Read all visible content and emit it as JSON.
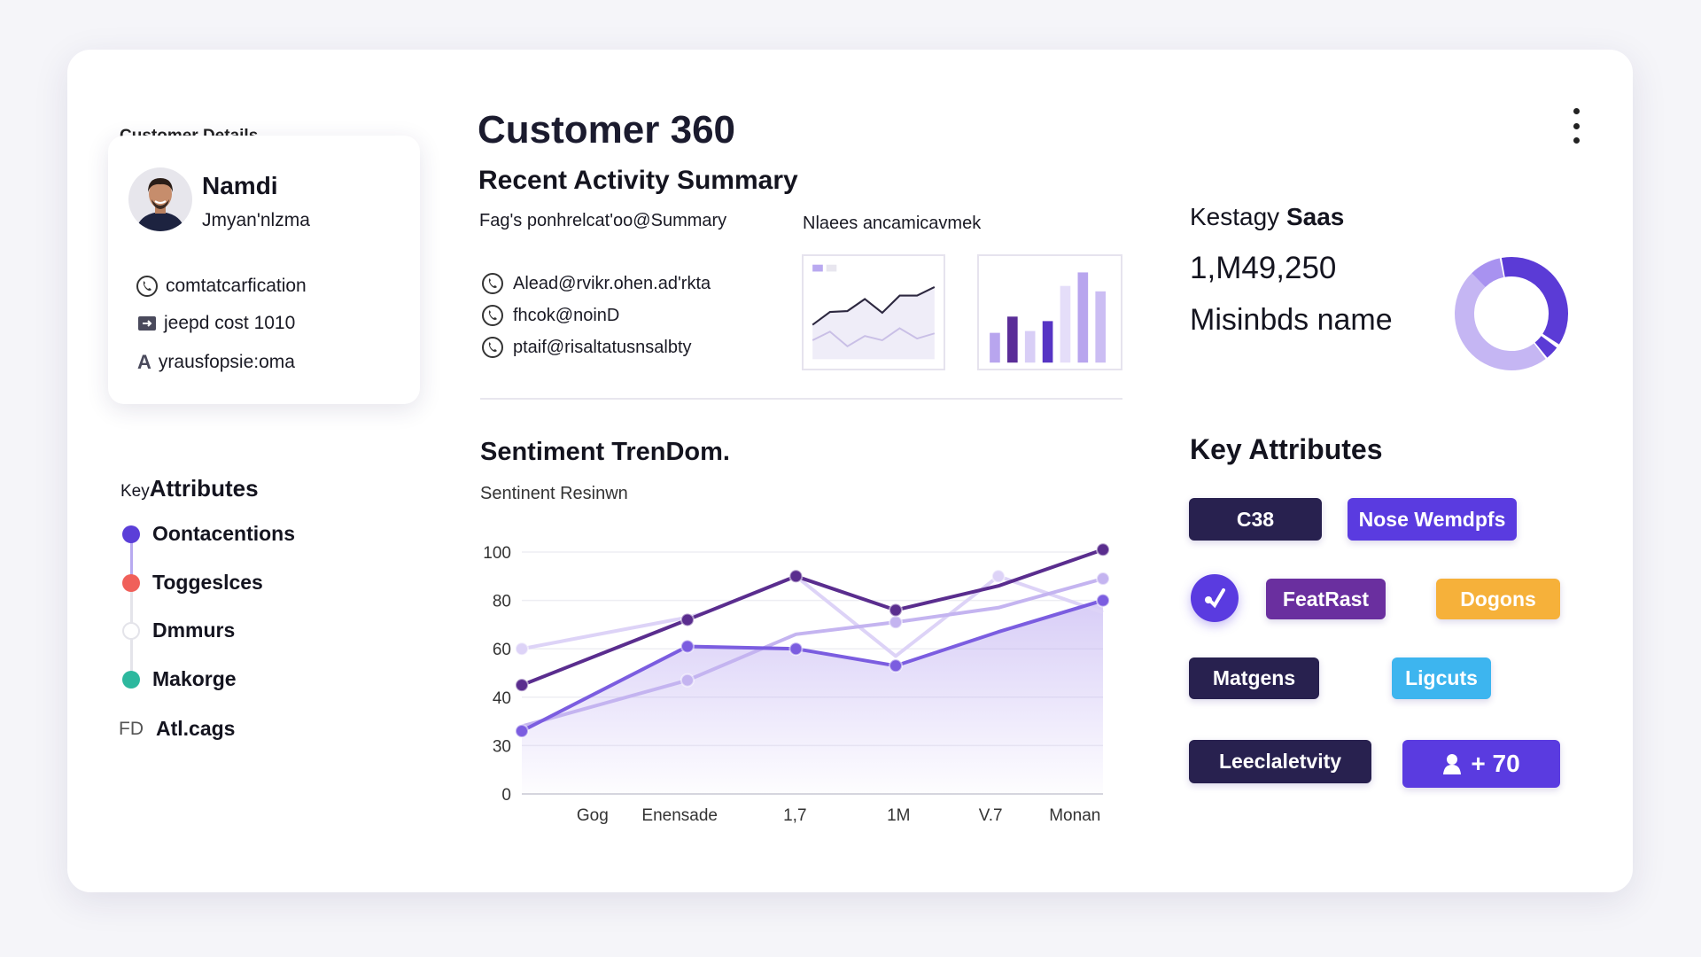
{
  "app": {
    "title": "Customer 360",
    "menu_icon": "kebab-menu-icon"
  },
  "customer": {
    "section_label": "Customer Details",
    "name": "Namdi",
    "subtitle": "Jmyan'nlzma",
    "details": [
      {
        "icon": "phone-icon",
        "text": "comtatcarfication"
      },
      {
        "icon": "id-card-icon",
        "text": "jeepd cost 1010"
      },
      {
        "icon": "letter-a-icon",
        "text": "yrausfopsie:oma"
      }
    ]
  },
  "key_attributes_left": {
    "title_prefix": "Key",
    "title": "Attributes",
    "items": [
      {
        "label": "Oontacentions",
        "color": "#5b3fd8"
      },
      {
        "label": "Toggeslces",
        "color": "#f0605a"
      },
      {
        "label": "Dmmurs",
        "color": "#ffffff"
      },
      {
        "label": "Makorge",
        "color": "#2db89e"
      }
    ],
    "footer_prefix": "FD",
    "footer_label": "Atl.cags"
  },
  "activity": {
    "title": "Recent Activity Summary",
    "subtitle": "Fag's ponhrelcat'oo@Summary",
    "right_subtitle": "Nlaees ancamicavmek",
    "items": [
      {
        "icon": "phone-icon",
        "text": "Alead@rvikr.ohen.ad'rkta"
      },
      {
        "icon": "phone-icon",
        "text": "fhcok@noinD"
      },
      {
        "icon": "phone-icon",
        "text": "ptaif@risaltatusnsalbty"
      }
    ],
    "sparkline": {
      "dark": [
        40,
        55,
        56,
        70,
        54,
        74,
        74,
        84
      ],
      "light": [
        22,
        32,
        15,
        27,
        22,
        36,
        24,
        30
      ]
    },
    "mini_bars": [
      {
        "value": 33,
        "color": "#b8a5ee"
      },
      {
        "value": 51,
        "color": "#5a2d98"
      },
      {
        "value": 35,
        "color": "#d8cef6"
      },
      {
        "value": 46,
        "color": "#5634c4"
      },
      {
        "value": 85,
        "color": "#e5def9"
      },
      {
        "value": 100,
        "color": "#b8a5ee"
      },
      {
        "value": 79,
        "color": "#cbbdf3"
      }
    ]
  },
  "sentiment": {
    "title": "Sentiment TrenDom.",
    "subtitle": "Sentinent Resinwn"
  },
  "chart_data": {
    "type": "line",
    "title": "",
    "y_ticks": [
      100,
      80,
      60,
      40,
      30,
      0
    ],
    "x_ticks": [
      {
        "label": "Gog",
        "x": 0.73
      },
      {
        "label": "Enensade",
        "x": 1.63
      },
      {
        "label": "1,7",
        "x": 2.82
      },
      {
        "label": "1M",
        "x": 3.89
      },
      {
        "label": "V.7",
        "x": 4.84
      },
      {
        "label": "Monan",
        "x": 5.71
      }
    ],
    "xlim": [
      0,
      6
    ],
    "grid": true,
    "series": [
      {
        "color": "#ddd3f7",
        "markers": [
          0,
          5
        ],
        "points": [
          [
            0,
            60
          ],
          [
            1.71,
            73
          ],
          [
            1.9,
            75
          ],
          [
            2.83,
            90
          ],
          [
            3.86,
            57
          ],
          [
            4.92,
            90
          ],
          [
            6,
            75
          ]
        ]
      },
      {
        "color": "#c4b4f0",
        "markers": [
          1,
          3,
          5
        ],
        "points": [
          [
            0,
            34
          ],
          [
            1.71,
            47
          ],
          [
            2.83,
            66
          ],
          [
            3.86,
            71
          ],
          [
            4.92,
            77
          ],
          [
            6,
            89
          ]
        ]
      },
      {
        "color": "#7b5de0",
        "markers": [
          0,
          1,
          2,
          3,
          5
        ],
        "fill": true,
        "points": [
          [
            0,
            33
          ],
          [
            1.71,
            61
          ],
          [
            2.83,
            60
          ],
          [
            3.86,
            53
          ],
          [
            4.92,
            67
          ],
          [
            6,
            80
          ]
        ]
      },
      {
        "color": "#5a2d8e",
        "markers": [
          0,
          1,
          2,
          3,
          5
        ],
        "points": [
          [
            0,
            45
          ],
          [
            1.71,
            72
          ],
          [
            2.83,
            90
          ],
          [
            3.86,
            76
          ],
          [
            4.92,
            86
          ],
          [
            6,
            101
          ]
        ]
      }
    ]
  },
  "summary": {
    "label_prefix": "Kestagy",
    "label_bold": "Saas",
    "value": "1,M49,250",
    "caption": "Misinbds name",
    "donut": [
      {
        "value": 38,
        "color": "#5b3bd6"
      },
      {
        "value": 5,
        "color": "#5b3bd6"
      },
      {
        "value": 48,
        "color": "#c5b6f3"
      },
      {
        "value": 9,
        "color": "#a892f0"
      }
    ]
  },
  "key_attributes": {
    "title": "Key Attributes",
    "chips": [
      {
        "label": "C38",
        "color": "#28214f"
      },
      {
        "label": "Nose Wemdpfs",
        "color": "#5a3be0"
      },
      {
        "label": "FeatRast",
        "color": "#6a2f9f"
      },
      {
        "label": "Dogons",
        "color": "#f6b13a"
      },
      {
        "label": "Matgens",
        "color": "#28214f"
      },
      {
        "label": "Ligcuts",
        "color": "#3db5ef"
      },
      {
        "label": "Leeclaletvity",
        "color": "#28214f"
      },
      {
        "label": "+ 70",
        "color": "#5a3be0"
      }
    ],
    "badge_icon": "check-badge-icon",
    "chip_icon": "user-icon"
  }
}
